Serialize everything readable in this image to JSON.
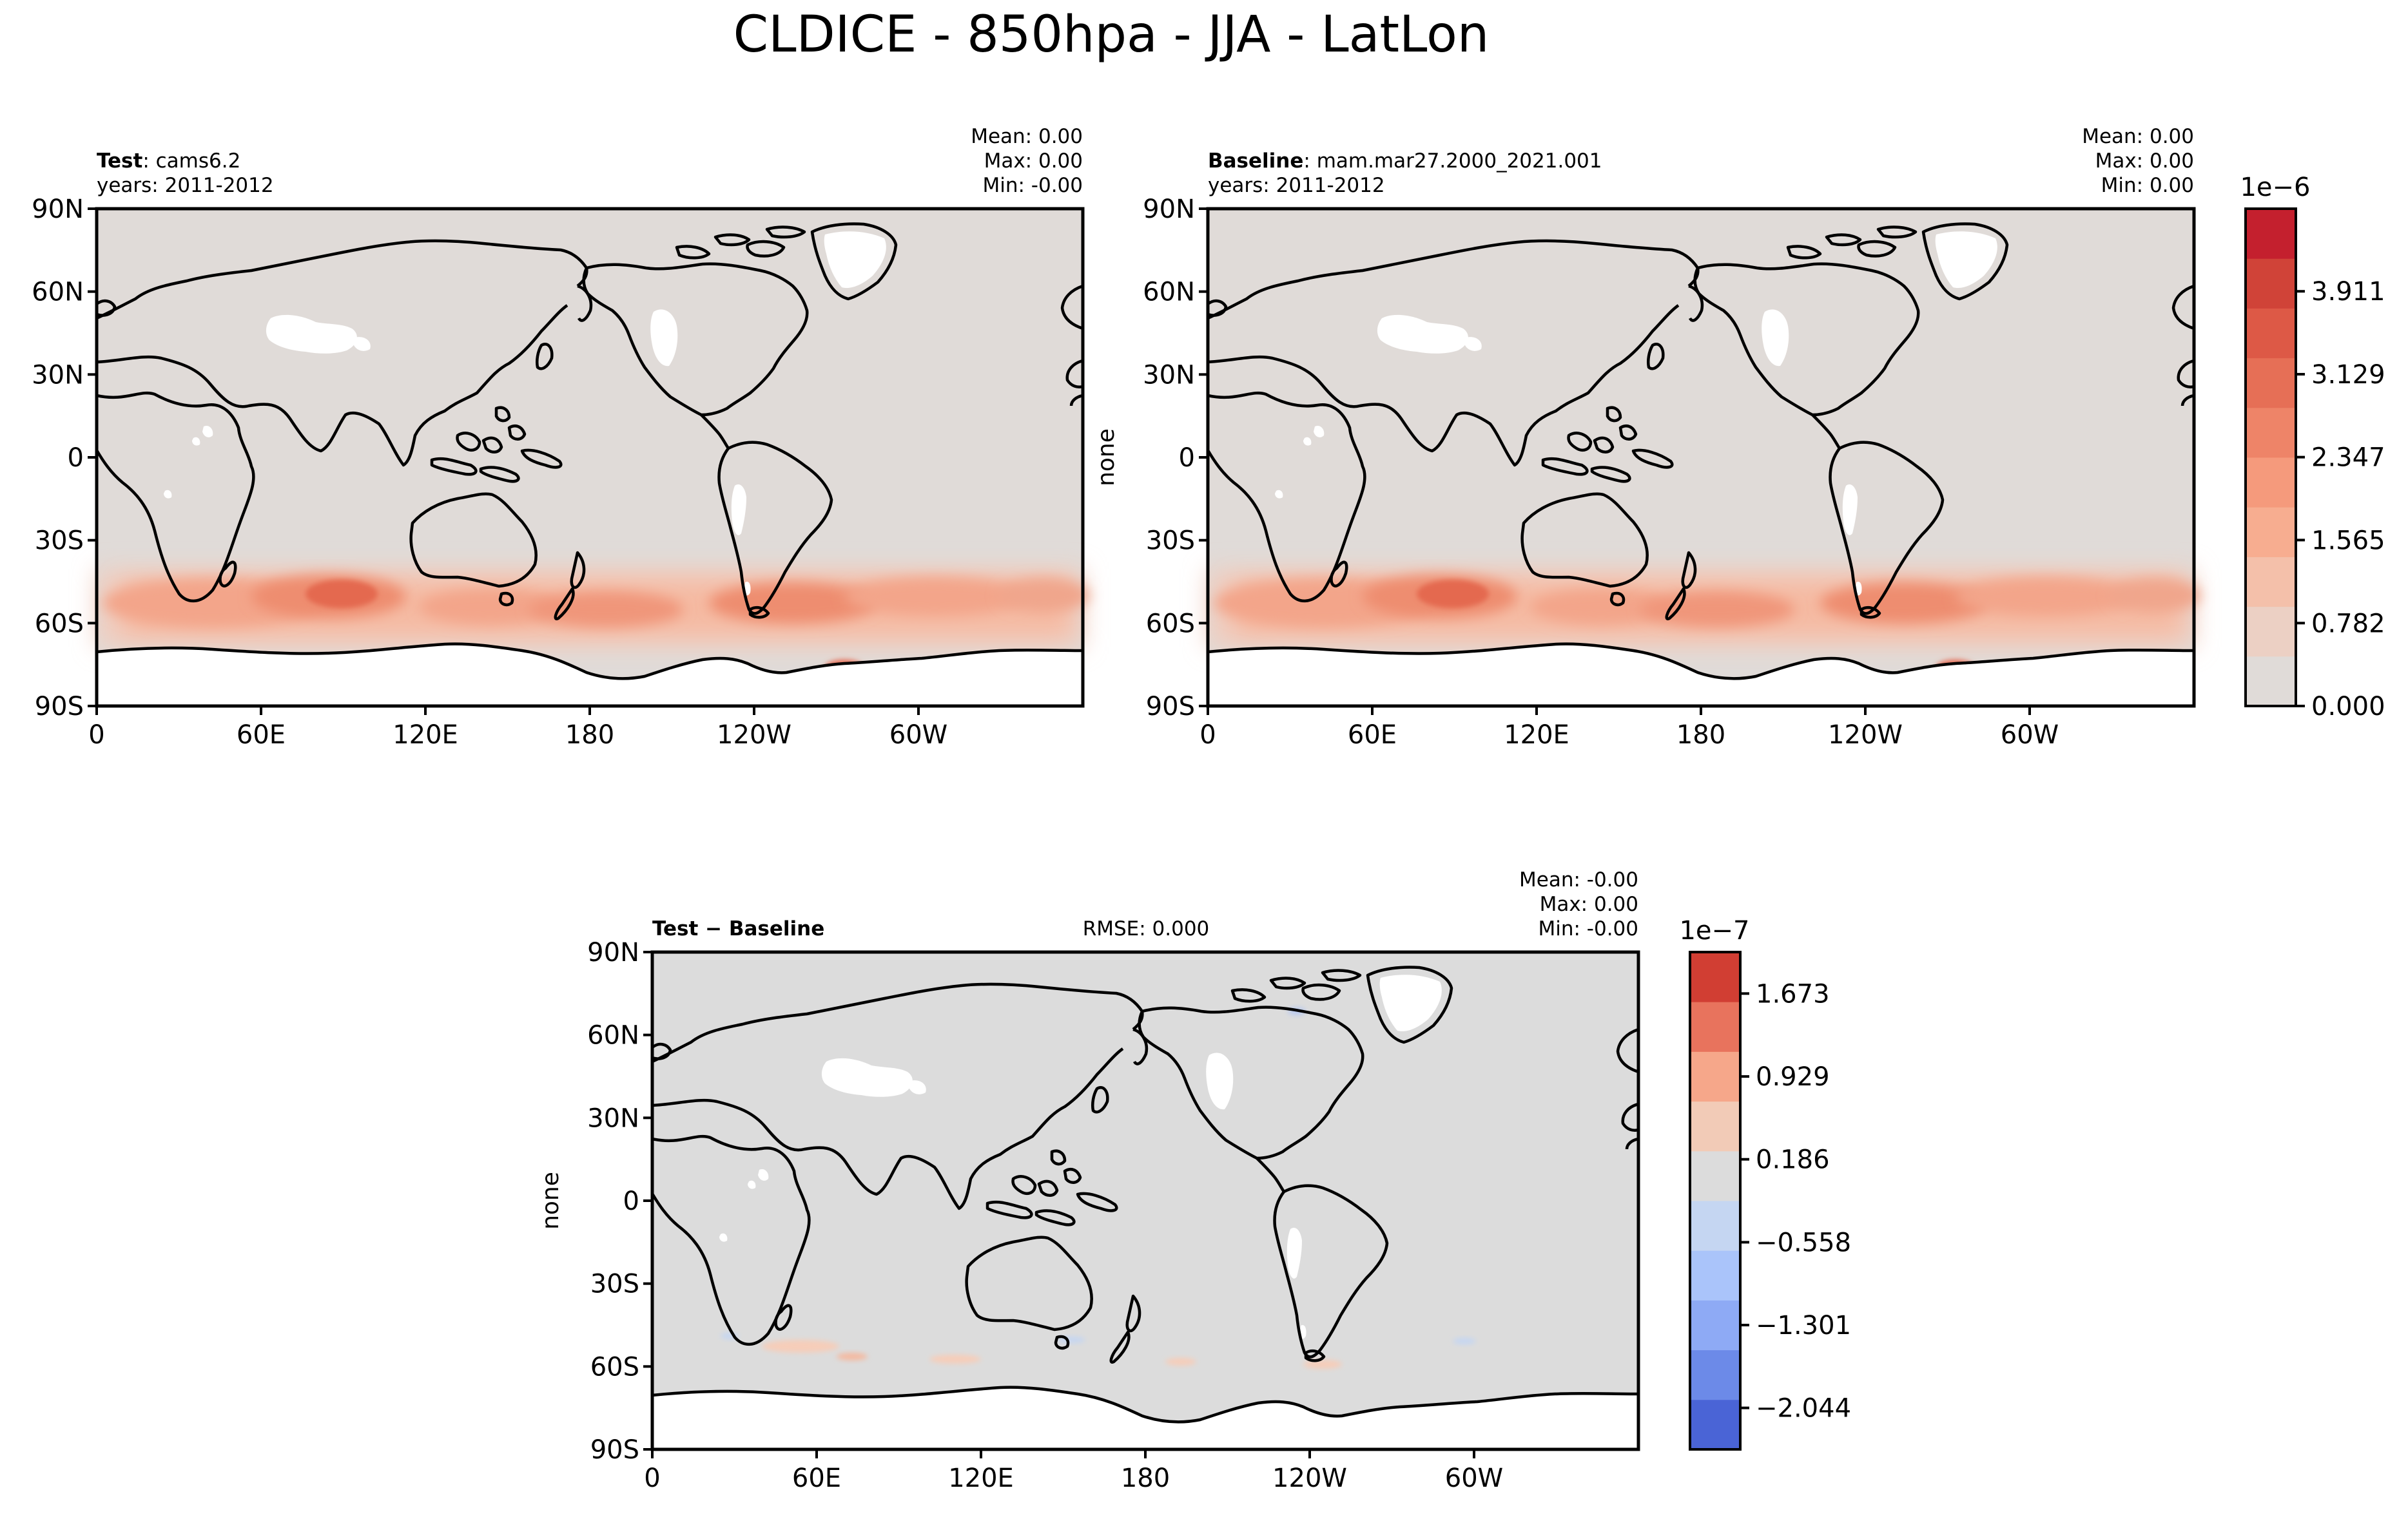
{
  "figure": {
    "title": "CLDICE - 850hpa - JJA - LatLon"
  },
  "axes": {
    "lat_ticks": [
      "90N",
      "60N",
      "30N",
      "0",
      "30S",
      "60S",
      "90S"
    ],
    "lon_ticks": [
      "0",
      "60E",
      "120E",
      "180",
      "120W",
      "60W"
    ]
  },
  "panels": {
    "test": {
      "label_bold": "Test",
      "label_sep": ": ",
      "label_value": "cams6.2",
      "years": "years: 2011-2012",
      "mean": "Mean:  0.00",
      "max": "Max:  0.00",
      "min": "Min: -0.00",
      "ylabel": ""
    },
    "baseline": {
      "label_bold": "Baseline",
      "label_sep": ": ",
      "label_value": "mam.mar27.2000_2021.001",
      "years": "years: 2011-2012",
      "mean": "Mean:  0.00",
      "max": "Max:  0.00",
      "min": "Min:  0.00",
      "ylabel": "none"
    },
    "diff": {
      "label_bold": "Test − Baseline",
      "rmse": "RMSE: 0.000",
      "mean": "Mean: -0.00",
      "max": "Max:  0.00",
      "min": "Min: -0.00",
      "ylabel": "none"
    }
  },
  "colorbars": {
    "main": {
      "exponent": "1e−6",
      "tick_labels": [
        "3.911",
        "3.129",
        "2.347",
        "1.565",
        "0.782",
        "0.000"
      ],
      "colors": [
        "#e0dbd8",
        "#ecd0c4",
        "#f4c0aa",
        "#f7ad90",
        "#f59a7c",
        "#ee8468",
        "#e66f56",
        "#dd5946",
        "#d04338",
        "#c4202e"
      ]
    },
    "diff": {
      "exponent": "1e−7",
      "tick_labels": [
        "1.673",
        "0.929",
        "0.186",
        "−0.558",
        "−1.301",
        "−2.044"
      ],
      "colors": [
        "#4a64d6",
        "#6c8ae8",
        "#8eaaf5",
        "#aac4fa",
        "#c5d6f2",
        "#dcdcdc",
        "#f2cbb7",
        "#f6a78a",
        "#e8735d",
        "#d13e33"
      ]
    }
  },
  "chart_data": [
    {
      "type": "heatmap",
      "title": "Test: cams6.2",
      "subtitle": "years: 2011-2012",
      "variable": "CLDICE",
      "units_exponent": "1e−6",
      "xlim": [
        0,
        360
      ],
      "ylim": [
        -90,
        90
      ],
      "description_values": {
        "Mean": 0.0,
        "Max": 0.0,
        "Min": -0.0
      },
      "features": [
        {
          "band_lat_range": [
            -65,
            -35
          ],
          "peak_value": 2.4e-06,
          "peak_lon": 90,
          "peak_lat": -50
        }
      ]
    },
    {
      "type": "heatmap",
      "title": "Baseline: mam.mar27.2000_2021.001",
      "subtitle": "years: 2011-2012",
      "variable": "CLDICE",
      "units_exponent": "1e−6",
      "xlim": [
        0,
        360
      ],
      "ylim": [
        -90,
        90
      ],
      "description_values": {
        "Mean": 0.0,
        "Max": 0.0,
        "Min": 0.0
      },
      "features": [
        {
          "band_lat_range": [
            -65,
            -35
          ],
          "peak_value": 2.4e-06,
          "peak_lon": 90,
          "peak_lat": -50
        }
      ]
    },
    {
      "type": "heatmap",
      "title": "Test − Baseline",
      "subtitle": "RMSE: 0.000",
      "variable": "CLDICE",
      "units_exponent": "1e−7",
      "xlim": [
        0,
        360
      ],
      "ylim": [
        -90,
        90
      ],
      "description_values": {
        "Mean": -0.0,
        "Max": 0.0,
        "Min": -0.0,
        "RMSE": 0.0
      }
    }
  ]
}
